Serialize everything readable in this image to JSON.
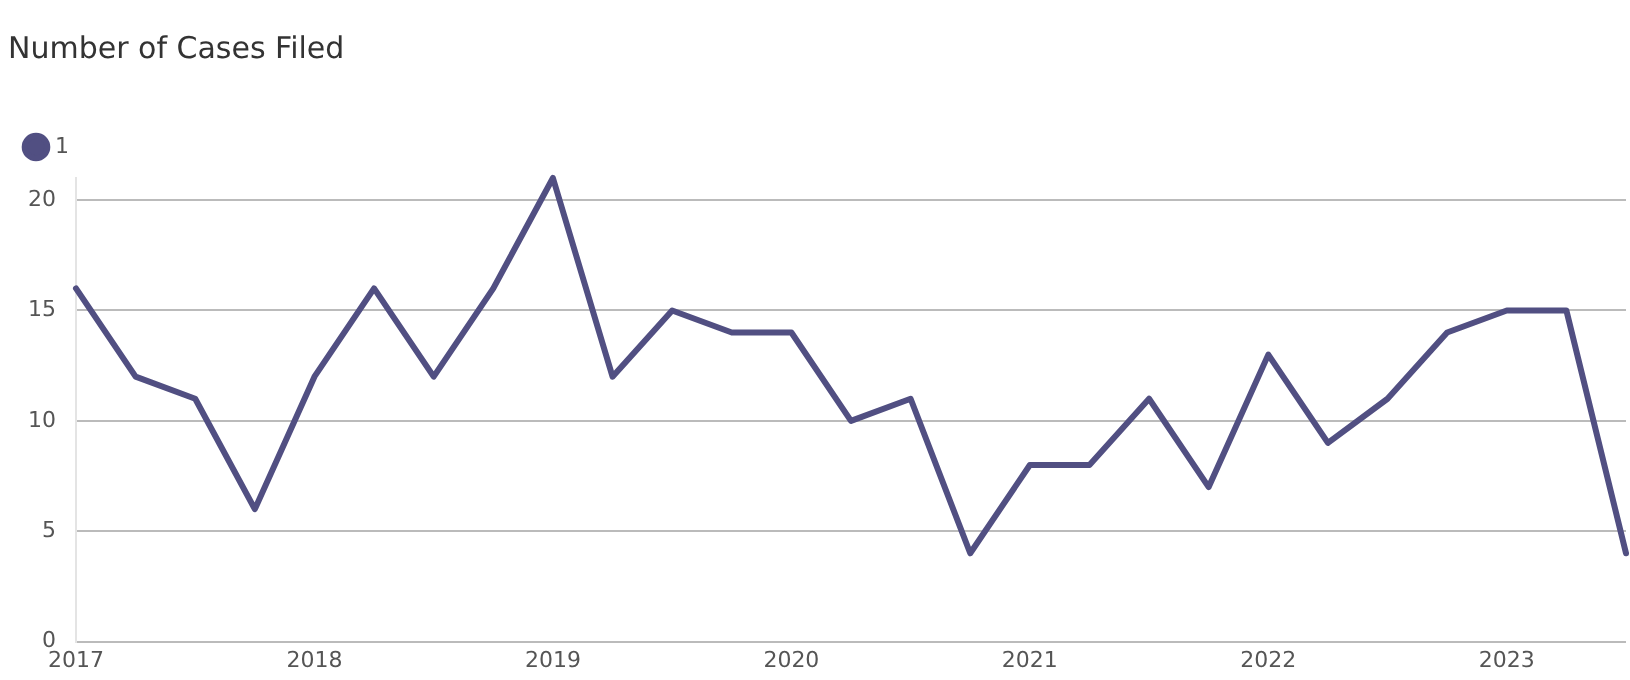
{
  "chart_data": {
    "type": "line",
    "title": "Number of Cases Filed",
    "x": [
      "2017-01",
      "2017-04",
      "2017-07",
      "2017-10",
      "2018-01",
      "2018-04",
      "2018-07",
      "2018-10",
      "2019-01",
      "2019-04",
      "2019-07",
      "2019-10",
      "2020-01",
      "2020-04",
      "2020-07",
      "2020-10",
      "2021-01",
      "2021-04",
      "2021-07",
      "2021-10",
      "2022-01",
      "2022-04",
      "2022-07",
      "2022-10",
      "2023-01",
      "2023-04",
      "2023-07"
    ],
    "series": [
      {
        "name": "1",
        "color": "#514f82",
        "values": [
          16,
          12,
          11,
          6,
          12,
          16,
          12,
          16,
          21,
          12,
          15,
          14,
          14,
          10,
          11,
          4,
          8,
          8,
          11,
          7,
          13,
          9,
          11,
          14,
          15,
          15,
          4
        ]
      }
    ],
    "xlim": [
      "2017-01",
      "2023-07"
    ],
    "xticks": [
      "2017",
      "2018",
      "2019",
      "2020",
      "2021",
      "2022",
      "2023"
    ],
    "ylim": [
      0,
      21
    ],
    "yticks": [
      0,
      5,
      10,
      15,
      20
    ],
    "grid": "y",
    "legend": "top left",
    "marker": "none",
    "line_style": "solid"
  }
}
